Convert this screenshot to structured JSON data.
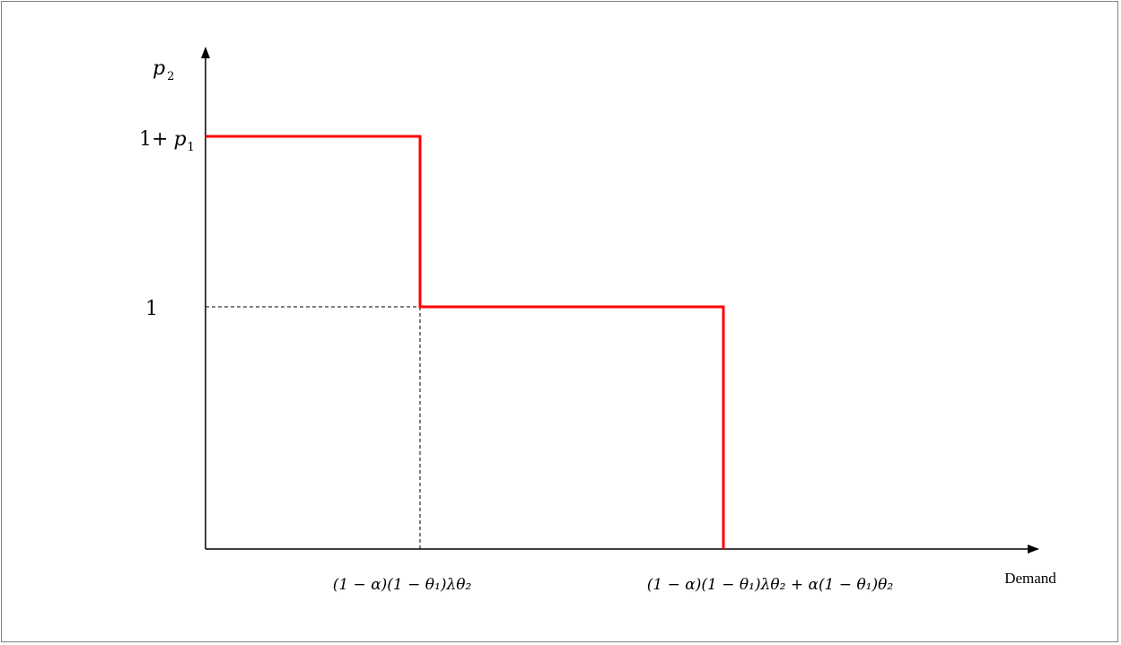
{
  "diagram": {
    "y_axis_label_var": "p",
    "y_axis_label_sub": "2",
    "y_tick_high_prefix": "1+",
    "y_tick_high_var": "p",
    "y_tick_high_sub": "1",
    "y_tick_low": "1",
    "x_tick_1": "(1 − α)(1 − θ₁)λθ₂",
    "x_tick_2": "(1 − α)(1 − θ₁)λθ₂ + α(1 − θ₁)θ₂",
    "x_axis_label": "Demand",
    "curve_color": "#ff0000"
  }
}
